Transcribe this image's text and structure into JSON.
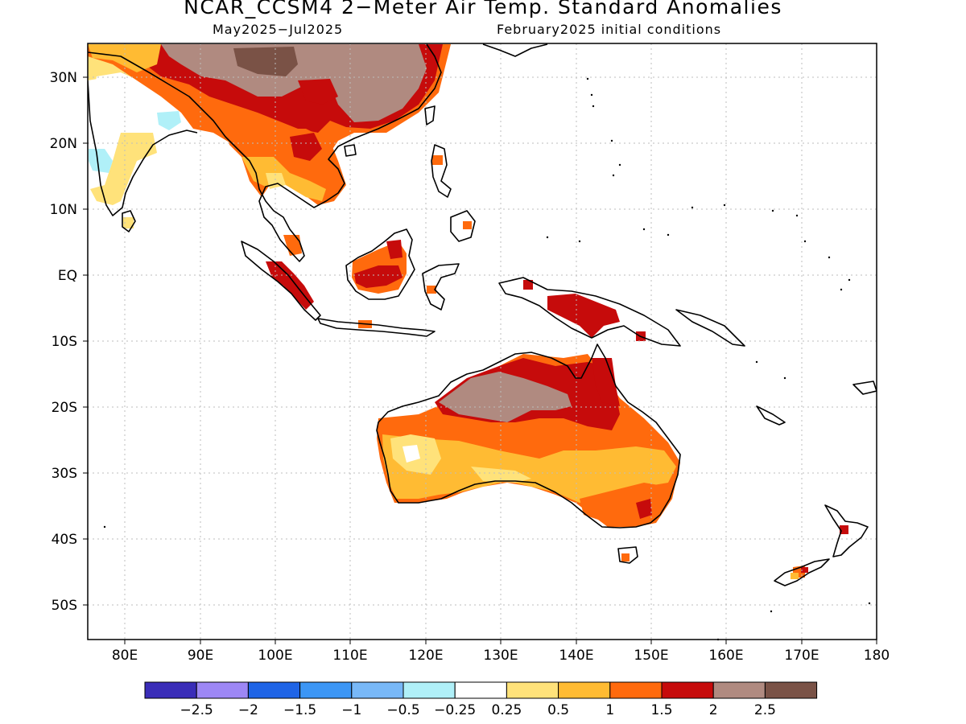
{
  "title": "NCAR_CCSM4 2−Meter Air Temp. Standard Anomalies",
  "subtitle_left": "May2025−Jul2025",
  "subtitle_right": "February2025 initial conditions",
  "lat_labels": [
    "30N",
    "20N",
    "10N",
    "EQ",
    "10S",
    "20S",
    "30S",
    "40S",
    "50S"
  ],
  "lon_labels": [
    "80E",
    "90E",
    "100E",
    "110E",
    "120E",
    "130E",
    "140E",
    "150E",
    "160E",
    "170E",
    "180"
  ],
  "colorbar": {
    "colors": [
      "#3a2db8",
      "#9d87f5",
      "#1f64e6",
      "#3c96f5",
      "#78b8f7",
      "#b0f0f8",
      "#ffffff",
      "#ffe27a",
      "#ffbb33",
      "#ff6a0d",
      "#c60b0b",
      "#b08a80",
      "#7a5246"
    ],
    "labels": [
      "−2.5",
      "−2",
      "−1.5",
      "−1",
      "−0.5",
      "−0.25",
      "0.25",
      "0.5",
      "1",
      "1.5",
      "2",
      "2.5"
    ]
  },
  "anomaly_regions": [
    {
      "name": "SE Asia / south China",
      "level": "1.5-2.5"
    },
    {
      "name": "Indochina",
      "level": "0.5-1.5"
    },
    {
      "name": "Sumatra",
      "level": "1.5-2"
    },
    {
      "name": "Borneo",
      "level": "1-2"
    },
    {
      "name": "New Guinea",
      "level": "1.5-2"
    },
    {
      "name": "Northern Australia",
      "level": "2-2.5"
    },
    {
      "name": "Central and southern Australia",
      "level": "0.5-1.5"
    },
    {
      "name": "India",
      "level": "-0.5-0.5"
    }
  ]
}
